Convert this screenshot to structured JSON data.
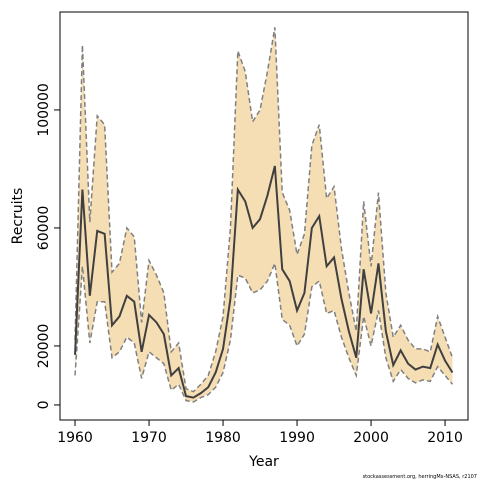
{
  "chart_data": {
    "type": "line",
    "x_label": "Year",
    "y_label": "Recruits",
    "footnote": "stockassessment.org, herringMx-NSAS, r2107",
    "x": [
      1960,
      1961,
      1962,
      1963,
      1964,
      1965,
      1966,
      1967,
      1968,
      1969,
      1970,
      1971,
      1972,
      1973,
      1974,
      1975,
      1976,
      1977,
      1978,
      1979,
      1980,
      1981,
      1982,
      1983,
      1984,
      1985,
      1986,
      1987,
      1988,
      1989,
      1990,
      1991,
      1992,
      1993,
      1994,
      1995,
      1996,
      1997,
      1998,
      1999,
      2000,
      2001,
      2002,
      2003,
      2004,
      2005,
      2006,
      2007,
      2008,
      2009,
      2010,
      2011
    ],
    "values": [
      17000,
      73000,
      37000,
      59000,
      58000,
      27000,
      30000,
      37000,
      35000,
      18000,
      30500,
      28000,
      24000,
      10000,
      12500,
      3000,
      2500,
      4000,
      6000,
      11000,
      19000,
      36000,
      73000,
      69000,
      60000,
      63000,
      71000,
      81000,
      46000,
      42000,
      32000,
      38000,
      60000,
      64000,
      47000,
      50000,
      36000,
      25000,
      16000,
      46000,
      31000,
      48000,
      25000,
      13500,
      18500,
      14000,
      12000,
      13000,
      12500,
      20500,
      15000,
      11000
    ],
    "upper": [
      22000,
      122000,
      62000,
      98000,
      95000,
      45000,
      48000,
      60000,
      57000,
      28000,
      49000,
      44000,
      38000,
      18000,
      21000,
      5500,
      4500,
      7000,
      10000,
      18000,
      30000,
      60000,
      120000,
      113000,
      96000,
      100000,
      113000,
      128000,
      72000,
      66000,
      51000,
      58000,
      88000,
      95000,
      70000,
      74000,
      53000,
      38000,
      25000,
      69000,
      47000,
      72000,
      38000,
      23000,
      27000,
      22000,
      19000,
      19000,
      18000,
      30000,
      23000,
      16000
    ],
    "lower": [
      10000,
      47000,
      21000,
      35000,
      35000,
      16000,
      18000,
      23000,
      21000,
      9000,
      18000,
      16000,
      14000,
      5000,
      7000,
      1500,
      1000,
      2500,
      3500,
      6000,
      11000,
      22000,
      44000,
      43000,
      38000,
      39000,
      42000,
      48000,
      29000,
      27000,
      20000,
      24000,
      40000,
      42000,
      31000,
      32000,
      23000,
      16000,
      10000,
      30000,
      20000,
      32000,
      16000,
      8000,
      12000,
      9000,
      7500,
      8500,
      8000,
      13000,
      10000,
      7000
    ],
    "color": "#404040",
    "band_color": "#f5deb3",
    "band_line_color": "#808080",
    "xlim": [
      1957.97,
      2013.1
    ],
    "ylim": [
      -5100,
      133200
    ],
    "xticks": [
      1960,
      1970,
      1980,
      1990,
      2000,
      2010
    ],
    "yticks": [
      0,
      20000,
      60000,
      100000
    ]
  }
}
